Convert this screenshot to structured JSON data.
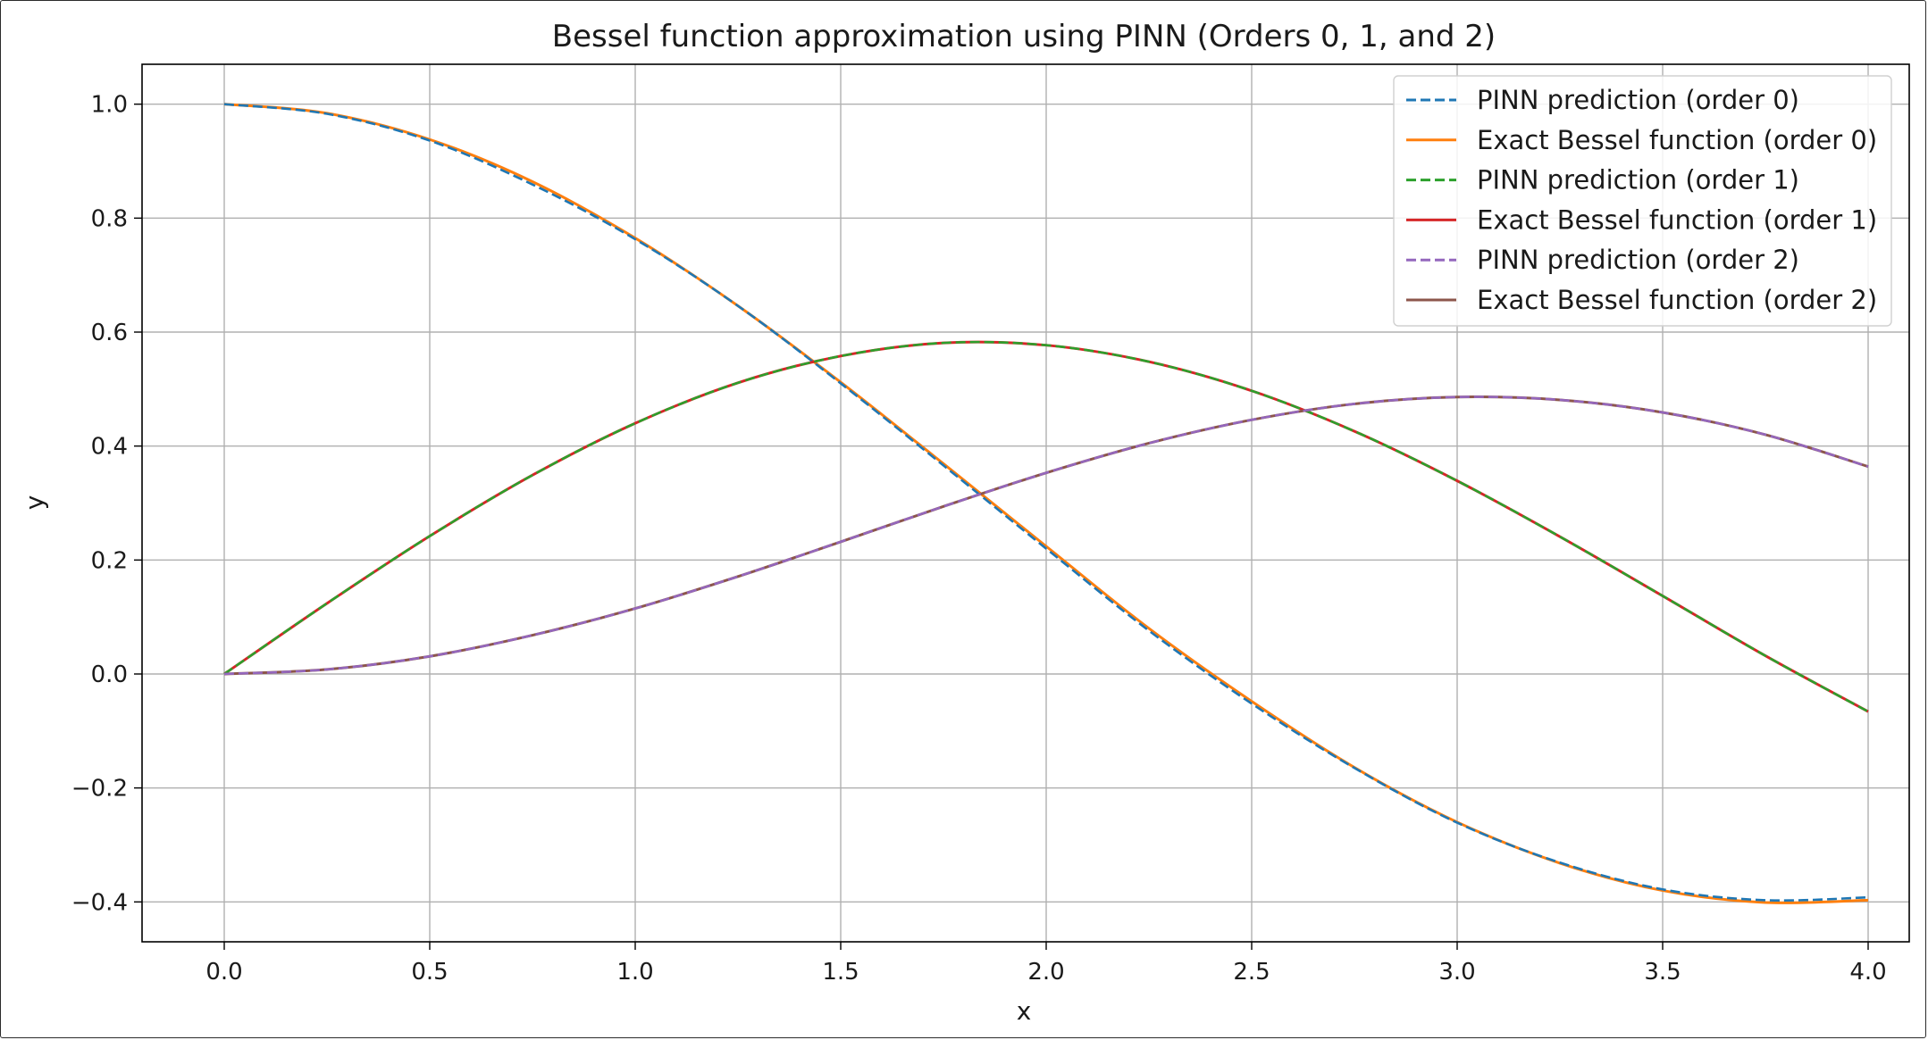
{
  "chart_data": {
    "type": "line",
    "title": "Bessel function approximation using PINN (Orders 0, 1, and 2)",
    "xlabel": "x",
    "ylabel": "y",
    "xlim": [
      -0.2,
      4.1
    ],
    "ylim": [
      -0.47,
      1.07
    ],
    "xticks": [
      0.0,
      0.5,
      1.0,
      1.5,
      2.0,
      2.5,
      3.0,
      3.5,
      4.0
    ],
    "xtick_labels": [
      "0.0",
      "0.5",
      "1.0",
      "1.5",
      "2.0",
      "2.5",
      "3.0",
      "3.5",
      "4.0"
    ],
    "yticks": [
      -0.4,
      -0.2,
      0.0,
      0.2,
      0.4,
      0.6,
      0.8,
      1.0
    ],
    "ytick_labels": [
      "−0.4",
      "−0.2",
      "0.0",
      "0.2",
      "0.4",
      "0.6",
      "0.8",
      "1.0"
    ],
    "grid": true,
    "legend_position": "top-right",
    "x": [
      0.0,
      0.25,
      0.5,
      0.75,
      1.0,
      1.25,
      1.5,
      1.75,
      2.0,
      2.25,
      2.5,
      2.75,
      3.0,
      3.25,
      3.5,
      3.75,
      4.0
    ],
    "series": [
      {
        "name": "PINN prediction (order 0)",
        "color": "#1f77b4",
        "style": "dashed",
        "values": [
          1.0,
          0.983,
          0.936,
          0.859,
          0.763,
          0.646,
          0.51,
          0.366,
          0.22,
          0.076,
          -0.052,
          -0.165,
          -0.261,
          -0.331,
          -0.378,
          -0.397,
          -0.392
        ]
      },
      {
        "name": "Exact Bessel function (order 0)",
        "color": "#ff7f0e",
        "style": "solid",
        "values": [
          1.0,
          0.984,
          0.938,
          0.864,
          0.765,
          0.646,
          0.512,
          0.369,
          0.224,
          0.08,
          -0.048,
          -0.164,
          -0.26,
          -0.332,
          -0.38,
          -0.401,
          -0.397
        ]
      },
      {
        "name": "PINN prediction (order 1)",
        "color": "#2ca02c",
        "style": "dashed",
        "values": [
          0.0,
          0.124,
          0.242,
          0.349,
          0.44,
          0.511,
          0.558,
          0.581,
          0.577,
          0.548,
          0.497,
          0.426,
          0.339,
          0.241,
          0.137,
          0.032,
          -0.066
        ]
      },
      {
        "name": "Exact Bessel function (order 1)",
        "color": "#d62728",
        "style": "solid",
        "values": [
          0.0,
          0.124,
          0.242,
          0.349,
          0.44,
          0.511,
          0.558,
          0.581,
          0.577,
          0.548,
          0.497,
          0.426,
          0.339,
          0.241,
          0.137,
          0.032,
          -0.066
        ]
      },
      {
        "name": "PINN prediction (order 2)",
        "color": "#9467bd",
        "style": "dashed",
        "values": [
          0.0,
          0.008,
          0.031,
          0.068,
          0.115,
          0.171,
          0.232,
          0.294,
          0.353,
          0.405,
          0.446,
          0.474,
          0.486,
          0.481,
          0.459,
          0.42,
          0.364
        ]
      },
      {
        "name": "Exact Bessel function (order 2)",
        "color": "#8c564b",
        "style": "solid",
        "values": [
          0.0,
          0.008,
          0.031,
          0.068,
          0.115,
          0.171,
          0.232,
          0.294,
          0.353,
          0.405,
          0.446,
          0.474,
          0.486,
          0.481,
          0.459,
          0.42,
          0.364
        ]
      }
    ]
  }
}
